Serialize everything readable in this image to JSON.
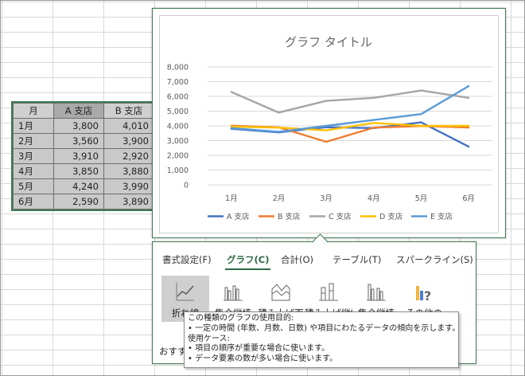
{
  "table": {
    "headers": [
      "月",
      "A 支店",
      "B 支店"
    ],
    "rows": [
      {
        "month": "1月",
        "a": "3,800",
        "b": "4,010"
      },
      {
        "month": "2月",
        "a": "3,560",
        "b": "3,900"
      },
      {
        "month": "3月",
        "a": "3,910",
        "b": "2,920"
      },
      {
        "month": "4月",
        "a": "3,850",
        "b": "3,880"
      },
      {
        "month": "5月",
        "a": "4,240",
        "b": "3,990"
      },
      {
        "month": "6月",
        "a": "2,590",
        "b": "3,890"
      }
    ]
  },
  "chart_data": {
    "type": "line",
    "title": "グラフ タイトル",
    "categories": [
      "1月",
      "2月",
      "3月",
      "4月",
      "5月",
      "6月"
    ],
    "yticks": [
      "0",
      "1,000",
      "2,000",
      "3,000",
      "4,000",
      "5,000",
      "6,000",
      "7,000",
      "8,000"
    ],
    "ylim": [
      0,
      8000
    ],
    "grid": true,
    "legend": "bottom",
    "series": [
      {
        "name": "A 支店",
        "color": "#4472c4",
        "values": [
          3800,
          3560,
          3910,
          3850,
          4240,
          2590
        ]
      },
      {
        "name": "B 支店",
        "color": "#ed7d31",
        "values": [
          4010,
          3900,
          2920,
          3880,
          3990,
          3890
        ]
      },
      {
        "name": "C 支店",
        "color": "#a5a5a5",
        "values": [
          6300,
          4900,
          5700,
          5900,
          6400,
          5900
        ]
      },
      {
        "name": "D 支店",
        "color": "#ffc000",
        "values": [
          3950,
          3880,
          3700,
          4200,
          4000,
          4000
        ]
      },
      {
        "name": "E 支店",
        "color": "#5b9bd5",
        "values": [
          3850,
          3600,
          4000,
          4400,
          4800,
          6700
        ]
      }
    ]
  },
  "quick_analysis": {
    "tabs": [
      "書式設定(F)",
      "グラフ(C)",
      "合計(O)",
      "テーブル(T)",
      "スパークライン(S)"
    ],
    "active_tab": "グラフ(C)",
    "icons": [
      {
        "label": "折れ線",
        "icon": "line-chart-icon",
        "selected": true
      },
      {
        "label": "集合縦棒",
        "icon": "clustered-column-icon",
        "selected": false
      },
      {
        "label": "積み上げ面",
        "icon": "stacked-area-icon",
        "selected": false
      },
      {
        "label": "積み上げ縦棒",
        "icon": "stacked-column-icon",
        "selected": false
      },
      {
        "label": "集合縦棒",
        "icon": "clustered-column-2-icon",
        "selected": false
      },
      {
        "label": "その他の",
        "icon": "more-charts-icon",
        "selected": false
      }
    ],
    "footer": "おすすめ"
  },
  "tooltip": {
    "lines": [
      "この種類のグラフの使用目的:",
      "• 一定の時間 (年数、月数、日数) や項目にわたるデータの傾向を示します。",
      "使用ケース:",
      "• 項目の順序が重要な場合に使います。",
      "• データ要素の数が多い場合に使います。"
    ]
  },
  "colors": {
    "accent": "#2e6b46",
    "selection_border": "#3f7a55",
    "table_fill": "#c9c9c9"
  }
}
